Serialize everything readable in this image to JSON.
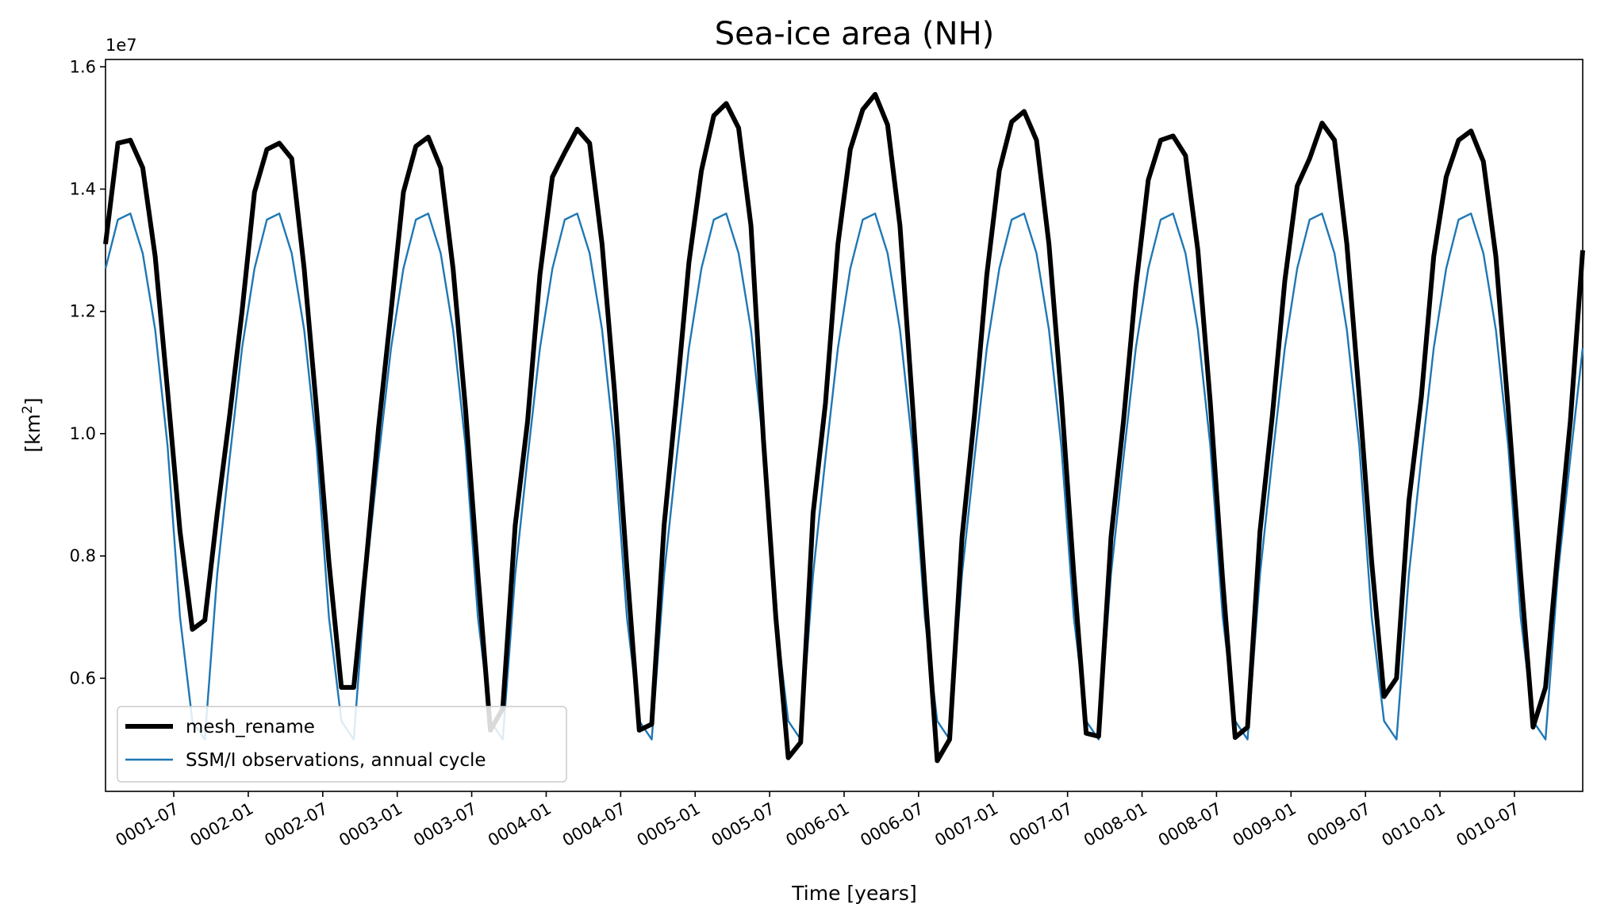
{
  "chart_data": {
    "type": "line",
    "title": "Sea-ice area (NH)",
    "xlabel": "Time [years]",
    "ylabel_main": "[km",
    "ylabel_sup": "2",
    "ylabel_close": "]",
    "y_offset_label": "1e7",
    "ylim": [
      0.415,
      1.612
    ],
    "y_ticks": [
      {
        "value": 0.6,
        "label": "0.6"
      },
      {
        "value": 0.8,
        "label": "0.8"
      },
      {
        "value": 1.0,
        "label": "1.0"
      },
      {
        "value": 1.2,
        "label": "1.2"
      },
      {
        "value": 1.4,
        "label": "1.4"
      },
      {
        "value": 1.6,
        "label": "1.6"
      }
    ],
    "x_unit": "months since 0001-01",
    "xlim": [
      0,
      119
    ],
    "x_ticks": [
      {
        "value": 5.5,
        "label": "0001-07"
      },
      {
        "value": 11.5,
        "label": "0002-01"
      },
      {
        "value": 17.5,
        "label": "0002-07"
      },
      {
        "value": 23.5,
        "label": "0003-01"
      },
      {
        "value": 29.5,
        "label": "0003-07"
      },
      {
        "value": 35.5,
        "label": "0004-01"
      },
      {
        "value": 41.5,
        "label": "0004-07"
      },
      {
        "value": 47.5,
        "label": "0005-01"
      },
      {
        "value": 53.5,
        "label": "0005-07"
      },
      {
        "value": 59.5,
        "label": "0006-01"
      },
      {
        "value": 65.5,
        "label": "0006-07"
      },
      {
        "value": 71.5,
        "label": "0007-01"
      },
      {
        "value": 77.5,
        "label": "0007-07"
      },
      {
        "value": 83.5,
        "label": "0008-01"
      },
      {
        "value": 89.5,
        "label": "0008-07"
      },
      {
        "value": 95.5,
        "label": "0009-01"
      },
      {
        "value": 101.5,
        "label": "0009-07"
      },
      {
        "value": 107.5,
        "label": "0010-01"
      },
      {
        "value": 113.5,
        "label": "0010-07"
      }
    ],
    "series": [
      {
        "name": "mesh_rename",
        "color": "#000000",
        "style": "thick",
        "values": [
          1.31,
          1.475,
          1.48,
          1.435,
          1.29,
          1.07,
          0.84,
          0.68,
          0.695,
          0.87,
          1.03,
          1.2,
          1.395,
          1.465,
          1.475,
          1.45,
          1.27,
          1.04,
          0.79,
          0.585,
          0.585,
          0.79,
          1.01,
          1.2,
          1.395,
          1.47,
          1.485,
          1.435,
          1.27,
          1.04,
          0.77,
          0.515,
          0.55,
          0.85,
          1.02,
          1.26,
          1.42,
          1.46,
          1.498,
          1.475,
          1.31,
          1.07,
          0.78,
          0.515,
          0.525,
          0.85,
          1.06,
          1.28,
          1.43,
          1.52,
          1.54,
          1.5,
          1.34,
          0.99,
          0.7,
          0.47,
          0.495,
          0.87,
          1.05,
          1.31,
          1.465,
          1.53,
          1.555,
          1.505,
          1.34,
          1.05,
          0.75,
          0.465,
          0.5,
          0.83,
          1.03,
          1.26,
          1.43,
          1.51,
          1.527,
          1.48,
          1.31,
          1.06,
          0.77,
          0.51,
          0.505,
          0.83,
          1.02,
          1.24,
          1.415,
          1.48,
          1.487,
          1.455,
          1.3,
          1.05,
          0.76,
          0.503,
          0.52,
          0.84,
          1.03,
          1.25,
          1.405,
          1.45,
          1.508,
          1.48,
          1.31,
          1.06,
          0.79,
          0.57,
          0.6,
          0.89,
          1.06,
          1.29,
          1.42,
          1.48,
          1.495,
          1.445,
          1.29,
          1.04,
          0.77,
          0.52,
          0.585,
          0.81,
          1.02,
          1.3
        ]
      },
      {
        "name": "SSM/I observations, annual cycle",
        "color": "#1f77b4",
        "style": "thin",
        "values": [
          1.27,
          1.35,
          1.36,
          1.295,
          1.17,
          0.98,
          0.7,
          0.53,
          0.5,
          0.77,
          0.96,
          1.14,
          1.27,
          1.35,
          1.36,
          1.295,
          1.17,
          0.98,
          0.7,
          0.53,
          0.5,
          0.77,
          0.96,
          1.14,
          1.27,
          1.35,
          1.36,
          1.295,
          1.17,
          0.98,
          0.7,
          0.53,
          0.5,
          0.77,
          0.96,
          1.14,
          1.27,
          1.35,
          1.36,
          1.295,
          1.17,
          0.98,
          0.7,
          0.53,
          0.5,
          0.77,
          0.96,
          1.14,
          1.27,
          1.35,
          1.36,
          1.295,
          1.17,
          0.98,
          0.7,
          0.53,
          0.5,
          0.77,
          0.96,
          1.14,
          1.27,
          1.35,
          1.36,
          1.295,
          1.17,
          0.98,
          0.7,
          0.53,
          0.5,
          0.77,
          0.96,
          1.14,
          1.27,
          1.35,
          1.36,
          1.295,
          1.17,
          0.98,
          0.7,
          0.53,
          0.5,
          0.77,
          0.96,
          1.14,
          1.27,
          1.35,
          1.36,
          1.295,
          1.17,
          0.98,
          0.7,
          0.53,
          0.5,
          0.77,
          0.96,
          1.14,
          1.27,
          1.35,
          1.36,
          1.295,
          1.17,
          0.98,
          0.7,
          0.53,
          0.5,
          0.77,
          0.96,
          1.14,
          1.27,
          1.35,
          1.36,
          1.295,
          1.17,
          0.98,
          0.7,
          0.53,
          0.5,
          0.77,
          0.96,
          1.14
        ]
      }
    ],
    "legend": {
      "position": "lower-left",
      "entries": [
        "mesh_rename",
        "SSM/I observations, annual cycle"
      ]
    }
  }
}
